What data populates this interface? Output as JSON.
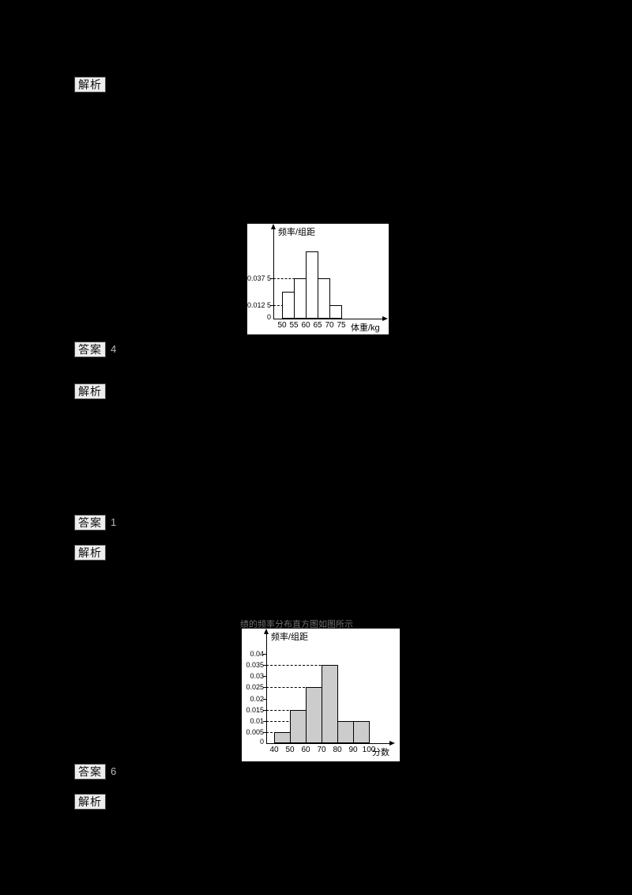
{
  "labels": {
    "analysis": "解析",
    "answer": "答案"
  },
  "fragments": {
    "answer1": "4",
    "answer2": "1",
    "answer3": "6",
    "caption": "绩的频率分布直方图如图所示"
  },
  "chart_data": [
    {
      "type": "bar",
      "title": "",
      "ylabel": "频率/组距",
      "xlabel": "体重/kg",
      "bin_edges": [
        "50",
        "55",
        "60",
        "65",
        "70",
        "75"
      ],
      "categories": [
        "[50,55)",
        "[55,60)",
        "[60,65)",
        "[65,70)",
        "[70,75)"
      ],
      "values": [
        0.025,
        0.0375,
        0.0625,
        0.0375,
        0.0125
      ],
      "y_tick_values": [
        0.0375,
        0.0125
      ],
      "y_tick_labels": [
        "0.037 5",
        "0.012 5"
      ],
      "guides": [
        0.0375,
        0.0125
      ],
      "origin_label": "0",
      "ylim": [
        0,
        0.07
      ],
      "legend": "none",
      "grid": "dashed guide lines at labeled densities",
      "bar_fill": "#ffffff"
    },
    {
      "type": "bar",
      "title": "",
      "ylabel": "频率/组距",
      "xlabel": "分数",
      "bin_edges": [
        "40",
        "50",
        "60",
        "70",
        "80",
        "90",
        "100"
      ],
      "categories": [
        "[40,50)",
        "[50,60)",
        "[60,70)",
        "[70,80)",
        "[80,90)",
        "[90,100)"
      ],
      "values": [
        0.005,
        0.015,
        0.025,
        0.035,
        0.01,
        0.01
      ],
      "y_tick_values": [
        0.04,
        0.035,
        0.03,
        0.025,
        0.02,
        0.015,
        0.01,
        0.005
      ],
      "y_tick_labels": [
        "0.04",
        "0.035",
        "0.03",
        "0.025",
        "0.02",
        "0.015",
        "0.01",
        "0.005"
      ],
      "guides": [
        0.035,
        0.025,
        0.015,
        0.01,
        0.005
      ],
      "origin_label": "0",
      "ylim": [
        0,
        0.045
      ],
      "legend": "none",
      "grid": "dashed guide lines at labeled densities",
      "bar_fill": "#cccccc"
    }
  ]
}
